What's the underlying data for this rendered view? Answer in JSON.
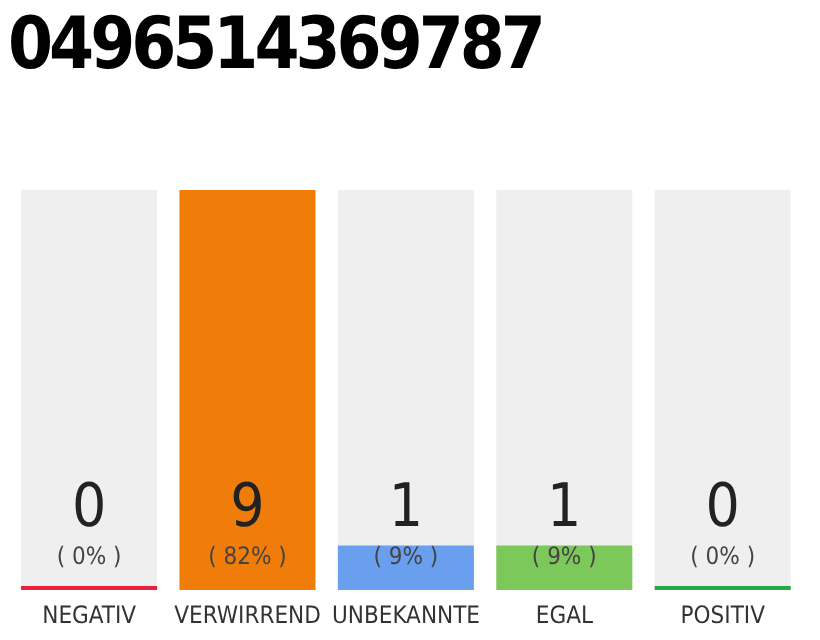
{
  "chart_data": {
    "type": "bar",
    "title": "0496514369787",
    "categories": [
      "NEGATIV",
      "VERWIRREND",
      "UNBEKANNTE",
      "EGAL",
      "POSITIV"
    ],
    "values": [
      0,
      9,
      1,
      1,
      0
    ],
    "colors": [
      "#e8203c",
      "#f07d0a",
      "#6a9ff0",
      "#7dc85a",
      "#28a745"
    ],
    "data_labels": true,
    "annotations": [
      "( 0% )",
      "( 82% )",
      "( 9% )",
      "( 9% )",
      "( 0% )"
    ]
  }
}
